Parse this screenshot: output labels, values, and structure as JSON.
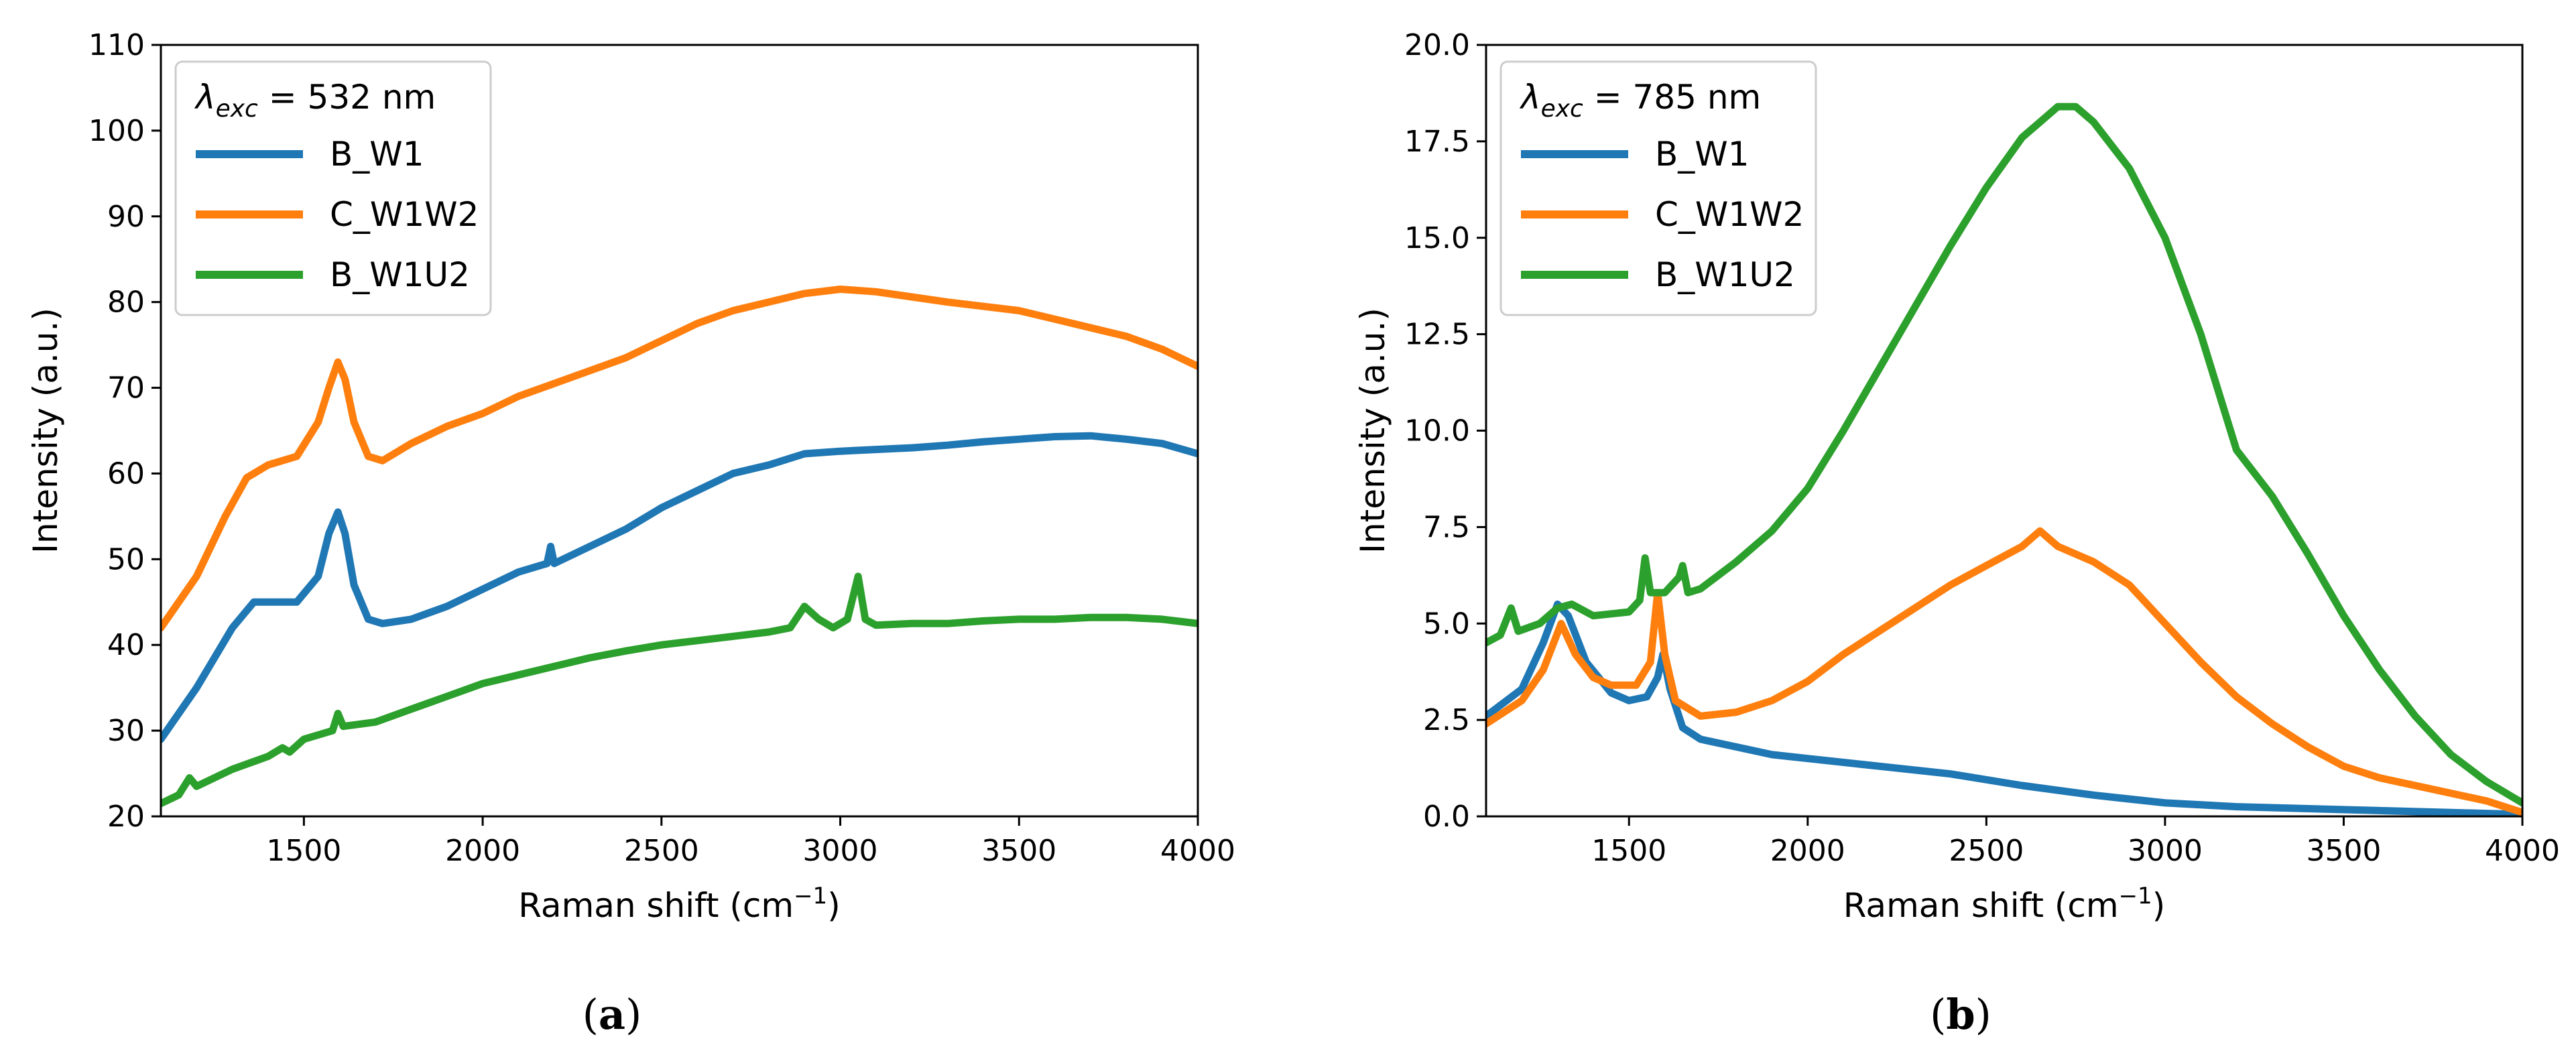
{
  "chart_data": [
    {
      "type": "line",
      "panel_label": "a",
      "legend_title_lambda": "λ",
      "legend_title_sub": "exc",
      "legend_title_value": " = 532 nm",
      "xlabel_main": "Raman shift (cm",
      "xlabel_sup": "−1",
      "xlabel_end": ")",
      "ylabel": "Intensity (a.u.)",
      "xlim": [
        1100,
        4000
      ],
      "ylim": [
        20,
        110
      ],
      "xticks": [
        1500,
        2000,
        2500,
        3000,
        3500,
        4000
      ],
      "xtick_labels": [
        "1500",
        "2000",
        "2500",
        "3000",
        "3500",
        "4000"
      ],
      "yticks": [
        20,
        30,
        40,
        50,
        60,
        70,
        80,
        90,
        100,
        110
      ],
      "ytick_labels": [
        "20",
        "30",
        "40",
        "50",
        "60",
        "70",
        "80",
        "90",
        "100",
        "110"
      ],
      "legend_position": "upper-left",
      "series": [
        {
          "name": "B_W1",
          "color": "#1f77b4",
          "points": [
            [
              1100,
              29
            ],
            [
              1200,
              35
            ],
            [
              1300,
              42
            ],
            [
              1360,
              45
            ],
            [
              1420,
              45
            ],
            [
              1480,
              45
            ],
            [
              1540,
              48
            ],
            [
              1570,
              53
            ],
            [
              1595,
              55.5
            ],
            [
              1615,
              53
            ],
            [
              1640,
              47
            ],
            [
              1680,
              43
            ],
            [
              1720,
              42.5
            ],
            [
              1800,
              43
            ],
            [
              1900,
              44.5
            ],
            [
              2000,
              46.5
            ],
            [
              2100,
              48.5
            ],
            [
              2180,
              49.5
            ],
            [
              2190,
              51.5
            ],
            [
              2200,
              49.5
            ],
            [
              2300,
              51.5
            ],
            [
              2400,
              53.5
            ],
            [
              2500,
              56
            ],
            [
              2600,
              58
            ],
            [
              2700,
              60
            ],
            [
              2800,
              61
            ],
            [
              2900,
              62.3
            ],
            [
              3000,
              62.6
            ],
            [
              3100,
              62.8
            ],
            [
              3200,
              63
            ],
            [
              3300,
              63.3
            ],
            [
              3400,
              63.7
            ],
            [
              3500,
              64
            ],
            [
              3600,
              64.3
            ],
            [
              3700,
              64.4
            ],
            [
              3800,
              64
            ],
            [
              3900,
              63.5
            ],
            [
              4000,
              62.3
            ]
          ]
        },
        {
          "name": "C_W1W2",
          "color": "#ff7f0e",
          "points": [
            [
              1100,
              42
            ],
            [
              1200,
              48
            ],
            [
              1280,
              55
            ],
            [
              1340,
              59.5
            ],
            [
              1400,
              61
            ],
            [
              1480,
              62
            ],
            [
              1540,
              66
            ],
            [
              1570,
              70
            ],
            [
              1595,
              73
            ],
            [
              1615,
              71
            ],
            [
              1640,
              66
            ],
            [
              1680,
              62
            ],
            [
              1720,
              61.5
            ],
            [
              1800,
              63.5
            ],
            [
              1900,
              65.5
            ],
            [
              2000,
              67
            ],
            [
              2100,
              69
            ],
            [
              2200,
              70.5
            ],
            [
              2300,
              72
            ],
            [
              2400,
              73.5
            ],
            [
              2500,
              75.5
            ],
            [
              2600,
              77.5
            ],
            [
              2700,
              79
            ],
            [
              2800,
              80
            ],
            [
              2900,
              81
            ],
            [
              3000,
              81.5
            ],
            [
              3100,
              81.2
            ],
            [
              3200,
              80.6
            ],
            [
              3300,
              80
            ],
            [
              3400,
              79.5
            ],
            [
              3500,
              79
            ],
            [
              3600,
              78
            ],
            [
              3700,
              77
            ],
            [
              3800,
              76
            ],
            [
              3900,
              74.5
            ],
            [
              4000,
              72.5
            ]
          ]
        },
        {
          "name": "B_W1U2",
          "color": "#2ca02c",
          "points": [
            [
              1100,
              21.5
            ],
            [
              1150,
              22.5
            ],
            [
              1180,
              24.5
            ],
            [
              1200,
              23.5
            ],
            [
              1300,
              25.5
            ],
            [
              1400,
              27
            ],
            [
              1440,
              28
            ],
            [
              1460,
              27.5
            ],
            [
              1500,
              29
            ],
            [
              1580,
              30
            ],
            [
              1595,
              32
            ],
            [
              1610,
              30.5
            ],
            [
              1700,
              31
            ],
            [
              1800,
              32.5
            ],
            [
              1900,
              34
            ],
            [
              2000,
              35.5
            ],
            [
              2100,
              36.5
            ],
            [
              2200,
              37.5
            ],
            [
              2300,
              38.5
            ],
            [
              2400,
              39.3
            ],
            [
              2500,
              40
            ],
            [
              2600,
              40.5
            ],
            [
              2700,
              41
            ],
            [
              2800,
              41.5
            ],
            [
              2860,
              42
            ],
            [
              2900,
              44.5
            ],
            [
              2940,
              43
            ],
            [
              2980,
              42
            ],
            [
              3020,
              43
            ],
            [
              3050,
              48
            ],
            [
              3070,
              43
            ],
            [
              3100,
              42.3
            ],
            [
              3200,
              42.5
            ],
            [
              3300,
              42.5
            ],
            [
              3400,
              42.8
            ],
            [
              3500,
              43
            ],
            [
              3600,
              43
            ],
            [
              3700,
              43.2
            ],
            [
              3800,
              43.2
            ],
            [
              3900,
              43
            ],
            [
              4000,
              42.5
            ]
          ]
        }
      ]
    },
    {
      "type": "line",
      "panel_label": "b",
      "legend_title_lambda": "λ",
      "legend_title_sub": "exc",
      "legend_title_value": " = 785 nm",
      "xlabel_main": "Raman shift (cm",
      "xlabel_sup": "−1",
      "xlabel_end": ")",
      "ylabel": "Intensity (a.u.)",
      "xlim": [
        1100,
        4000
      ],
      "ylim": [
        0,
        20
      ],
      "xticks": [
        1500,
        2000,
        2500,
        3000,
        3500,
        4000
      ],
      "xtick_labels": [
        "1500",
        "2000",
        "2500",
        "3000",
        "3500",
        "4000"
      ],
      "yticks": [
        0,
        2.5,
        5,
        7.5,
        10,
        12.5,
        15,
        17.5,
        20
      ],
      "ytick_labels": [
        "0.0",
        "2.5",
        "5.0",
        "7.5",
        "10.0",
        "12.5",
        "15.0",
        "17.5",
        "20.0"
      ],
      "legend_position": "upper-left",
      "series": [
        {
          "name": "B_W1",
          "color": "#1f77b4",
          "points": [
            [
              1100,
              2.6
            ],
            [
              1200,
              3.3
            ],
            [
              1260,
              4.5
            ],
            [
              1300,
              5.5
            ],
            [
              1330,
              5.2
            ],
            [
              1380,
              4
            ],
            [
              1450,
              3.2
            ],
            [
              1500,
              3
            ],
            [
              1550,
              3.1
            ],
            [
              1580,
              3.6
            ],
            [
              1595,
              4.2
            ],
            [
              1615,
              3.3
            ],
            [
              1650,
              2.3
            ],
            [
              1700,
              2
            ],
            [
              1800,
              1.8
            ],
            [
              1900,
              1.6
            ],
            [
              2000,
              1.5
            ],
            [
              2200,
              1.3
            ],
            [
              2400,
              1.1
            ],
            [
              2600,
              0.8
            ],
            [
              2800,
              0.55
            ],
            [
              3000,
              0.35
            ],
            [
              3200,
              0.25
            ],
            [
              3400,
              0.2
            ],
            [
              3600,
              0.15
            ],
            [
              3800,
              0.1
            ],
            [
              4000,
              0.05
            ]
          ]
        },
        {
          "name": "C_W1W2",
          "color": "#ff7f0e",
          "points": [
            [
              1100,
              2.4
            ],
            [
              1200,
              3
            ],
            [
              1260,
              3.8
            ],
            [
              1310,
              5
            ],
            [
              1350,
              4.2
            ],
            [
              1400,
              3.6
            ],
            [
              1450,
              3.4
            ],
            [
              1520,
              3.4
            ],
            [
              1560,
              4
            ],
            [
              1580,
              5.8
            ],
            [
              1600,
              4.2
            ],
            [
              1630,
              3
            ],
            [
              1700,
              2.6
            ],
            [
              1800,
              2.7
            ],
            [
              1900,
              3
            ],
            [
              2000,
              3.5
            ],
            [
              2100,
              4.2
            ],
            [
              2200,
              4.8
            ],
            [
              2300,
              5.4
            ],
            [
              2400,
              6
            ],
            [
              2500,
              6.5
            ],
            [
              2600,
              7
            ],
            [
              2650,
              7.4
            ],
            [
              2700,
              7
            ],
            [
              2800,
              6.6
            ],
            [
              2900,
              6
            ],
            [
              3000,
              5
            ],
            [
              3100,
              4
            ],
            [
              3200,
              3.1
            ],
            [
              3300,
              2.4
            ],
            [
              3400,
              1.8
            ],
            [
              3500,
              1.3
            ],
            [
              3600,
              1
            ],
            [
              3700,
              0.8
            ],
            [
              3800,
              0.6
            ],
            [
              3900,
              0.4
            ],
            [
              4000,
              0.1
            ]
          ]
        },
        {
          "name": "B_W1U2",
          "color": "#2ca02c",
          "points": [
            [
              1100,
              4.5
            ],
            [
              1140,
              4.7
            ],
            [
              1170,
              5.4
            ],
            [
              1190,
              4.8
            ],
            [
              1250,
              5
            ],
            [
              1300,
              5.4
            ],
            [
              1340,
              5.5
            ],
            [
              1400,
              5.2
            ],
            [
              1500,
              5.3
            ],
            [
              1530,
              5.6
            ],
            [
              1545,
              6.7
            ],
            [
              1560,
              5.8
            ],
            [
              1600,
              5.8
            ],
            [
              1640,
              6.2
            ],
            [
              1650,
              6.5
            ],
            [
              1665,
              5.8
            ],
            [
              1700,
              5.9
            ],
            [
              1800,
              6.6
            ],
            [
              1900,
              7.4
            ],
            [
              2000,
              8.5
            ],
            [
              2100,
              10
            ],
            [
              2200,
              11.6
            ],
            [
              2300,
              13.2
            ],
            [
              2400,
              14.8
            ],
            [
              2500,
              16.3
            ],
            [
              2600,
              17.6
            ],
            [
              2700,
              18.4
            ],
            [
              2750,
              18.4
            ],
            [
              2800,
              18
            ],
            [
              2900,
              16.8
            ],
            [
              3000,
              15
            ],
            [
              3100,
              12.5
            ],
            [
              3200,
              9.5
            ],
            [
              3300,
              8.3
            ],
            [
              3400,
              6.8
            ],
            [
              3500,
              5.2
            ],
            [
              3600,
              3.8
            ],
            [
              3700,
              2.6
            ],
            [
              3800,
              1.6
            ],
            [
              3900,
              0.9
            ],
            [
              4000,
              0.35
            ]
          ]
        }
      ]
    }
  ]
}
